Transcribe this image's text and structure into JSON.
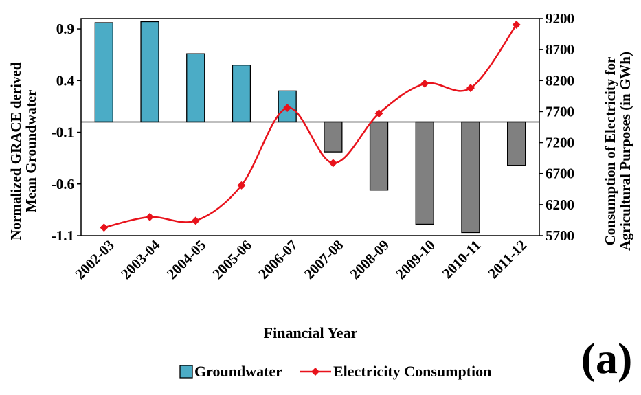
{
  "chart_data": {
    "type": "bar-line",
    "categories": [
      "2002-03",
      "2003-04",
      "2004-05",
      "2005-06",
      "2006-07",
      "2007-08",
      "2008-09",
      "2009-10",
      "2010-11",
      "2011-12"
    ],
    "series": [
      {
        "name": "Groundwater",
        "type": "bar",
        "color": "#4bacc6",
        "negative_color": "#808080",
        "values": [
          0.96,
          0.97,
          0.66,
          0.55,
          0.3,
          -0.29,
          -0.66,
          -0.99,
          -1.07,
          -0.42
        ]
      },
      {
        "name": "Electricity Consumption",
        "type": "line",
        "axis": "y2",
        "color": "#e8121b",
        "values": [
          5830,
          6000,
          5940,
          6510,
          7760,
          6870,
          7670,
          8150,
          8080,
          9100
        ]
      }
    ],
    "xlabel": "Financial Year",
    "ylabel": [
      "Normalized GRACE derived",
      "Mean Groundwater"
    ],
    "y2label": [
      "Consumption of Electricity for",
      "Agricultural Purposes (in GWh)"
    ],
    "ylim": [
      -1.1,
      1.0
    ],
    "yticks": [
      -1.1,
      -0.6,
      -0.1,
      0.4,
      0.9
    ],
    "y2lim": [
      5700,
      9200
    ],
    "y2ticks": [
      5700,
      6200,
      6700,
      7200,
      7700,
      8200,
      8700,
      9200
    ],
    "panel_label": "(a)"
  }
}
